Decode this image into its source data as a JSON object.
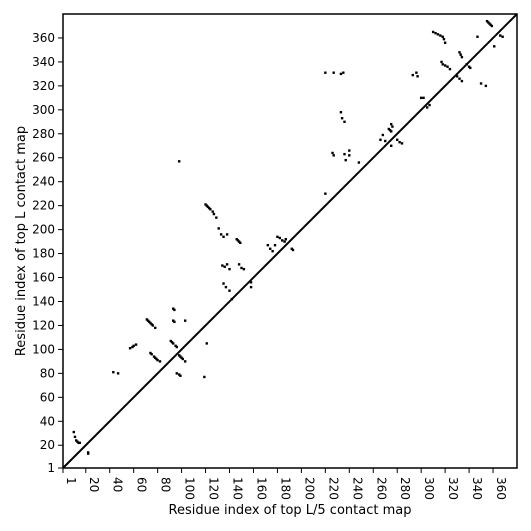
{
  "chart_data": {
    "type": "scatter",
    "title": "",
    "xlabel": "Residue index of top L/5 contact map",
    "ylabel": "Residue index of top L contact map",
    "xlim": [
      1,
      380
    ],
    "ylim": [
      1,
      380
    ],
    "xticks": [
      1,
      20,
      40,
      60,
      80,
      100,
      120,
      140,
      160,
      180,
      200,
      220,
      240,
      260,
      280,
      300,
      320,
      340,
      360
    ],
    "yticks": [
      1,
      20,
      40,
      60,
      80,
      100,
      120,
      140,
      160,
      180,
      200,
      220,
      240,
      260,
      280,
      300,
      320,
      340,
      360
    ],
    "diagonal": true,
    "colors": {
      "points": "#000000",
      "diagonal": "#000000",
      "background": "#ffffff"
    },
    "series": [
      {
        "values": [
          [
            10,
            31
          ],
          [
            11,
            27
          ],
          [
            12,
            24
          ],
          [
            13,
            23
          ],
          [
            14,
            22
          ],
          [
            15,
            22
          ],
          [
            22,
            14
          ],
          [
            22,
            13
          ],
          [
            43,
            81
          ],
          [
            47,
            80
          ],
          [
            57,
            101
          ],
          [
            59,
            102
          ],
          [
            60,
            103
          ],
          [
            62,
            104
          ],
          [
            71,
            125
          ],
          [
            72,
            124
          ],
          [
            73,
            123
          ],
          [
            74,
            122
          ],
          [
            75,
            121
          ],
          [
            76,
            120
          ],
          [
            78,
            118
          ],
          [
            74,
            97
          ],
          [
            75,
            96
          ],
          [
            77,
            94
          ],
          [
            78,
            93
          ],
          [
            79,
            92
          ],
          [
            80,
            91
          ],
          [
            82,
            90
          ],
          [
            91,
            107
          ],
          [
            92,
            106
          ],
          [
            93,
            105
          ],
          [
            95,
            103
          ],
          [
            96,
            102
          ],
          [
            93,
            134
          ],
          [
            94,
            133
          ],
          [
            93,
            124
          ],
          [
            94,
            123
          ],
          [
            98,
            95
          ],
          [
            99,
            94
          ],
          [
            100,
            93
          ],
          [
            101,
            92
          ],
          [
            103,
            90
          ],
          [
            103,
            124
          ],
          [
            96,
            80
          ],
          [
            98,
            79
          ],
          [
            99,
            78
          ],
          [
            98,
            257
          ],
          [
            120,
            221
          ],
          [
            121,
            220
          ],
          [
            122,
            219
          ],
          [
            123,
            218
          ],
          [
            124,
            217
          ],
          [
            126,
            215
          ],
          [
            127,
            213
          ],
          [
            129,
            210
          ],
          [
            131,
            201
          ],
          [
            133,
            196
          ],
          [
            135,
            194
          ],
          [
            138,
            196
          ],
          [
            134,
            170
          ],
          [
            136,
            169
          ],
          [
            138,
            171
          ],
          [
            140,
            167
          ],
          [
            135,
            155
          ],
          [
            137,
            152
          ],
          [
            140,
            149
          ],
          [
            142,
            142
          ],
          [
            146,
            192
          ],
          [
            147,
            191
          ],
          [
            148,
            190
          ],
          [
            149,
            189
          ],
          [
            148,
            171
          ],
          [
            150,
            168
          ],
          [
            152,
            167
          ],
          [
            158,
            156
          ],
          [
            158,
            152
          ],
          [
            121,
            105
          ],
          [
            119,
            77
          ],
          [
            172,
            187
          ],
          [
            174,
            184
          ],
          [
            176,
            182
          ],
          [
            178,
            187
          ],
          [
            180,
            194
          ],
          [
            182,
            193
          ],
          [
            184,
            191
          ],
          [
            186,
            190
          ],
          [
            187,
            192
          ],
          [
            192,
            184
          ],
          [
            193,
            183
          ],
          [
            226,
            264
          ],
          [
            227,
            262
          ],
          [
            233,
            298
          ],
          [
            234,
            293
          ],
          [
            236,
            290
          ],
          [
            236,
            263
          ],
          [
            237,
            258
          ],
          [
            240,
            262
          ],
          [
            240,
            266
          ],
          [
            248,
            256
          ],
          [
            233,
            330
          ],
          [
            235,
            331
          ],
          [
            227,
            331
          ],
          [
            220,
            331
          ],
          [
            220,
            230
          ],
          [
            266,
            275
          ],
          [
            268,
            279
          ],
          [
            270,
            274
          ],
          [
            273,
            284
          ],
          [
            274,
            283
          ],
          [
            275,
            282
          ],
          [
            275,
            288
          ],
          [
            276,
            286
          ],
          [
            275,
            270
          ],
          [
            280,
            275
          ],
          [
            282,
            273
          ],
          [
            284,
            272
          ],
          [
            293,
            329
          ],
          [
            296,
            331
          ],
          [
            297,
            328
          ],
          [
            300,
            310
          ],
          [
            302,
            310
          ],
          [
            305,
            302
          ],
          [
            307,
            304
          ],
          [
            310,
            365
          ],
          [
            312,
            364
          ],
          [
            314,
            363
          ],
          [
            316,
            362
          ],
          [
            318,
            361
          ],
          [
            319,
            359
          ],
          [
            320,
            356
          ],
          [
            317,
            340
          ],
          [
            318,
            338
          ],
          [
            320,
            337
          ],
          [
            322,
            336
          ],
          [
            324,
            334
          ],
          [
            330,
            328
          ],
          [
            332,
            326
          ],
          [
            334,
            324
          ],
          [
            332,
            348
          ],
          [
            333,
            346
          ],
          [
            334,
            344
          ],
          [
            338,
            338
          ],
          [
            340,
            336
          ],
          [
            341,
            335
          ],
          [
            347,
            361
          ],
          [
            350,
            322
          ],
          [
            354,
            320
          ],
          [
            355,
            374
          ],
          [
            356,
            373
          ],
          [
            357,
            372
          ],
          [
            358,
            371
          ],
          [
            359,
            370
          ],
          [
            366,
            362
          ],
          [
            368,
            361
          ],
          [
            361,
            353
          ]
        ]
      }
    ]
  }
}
